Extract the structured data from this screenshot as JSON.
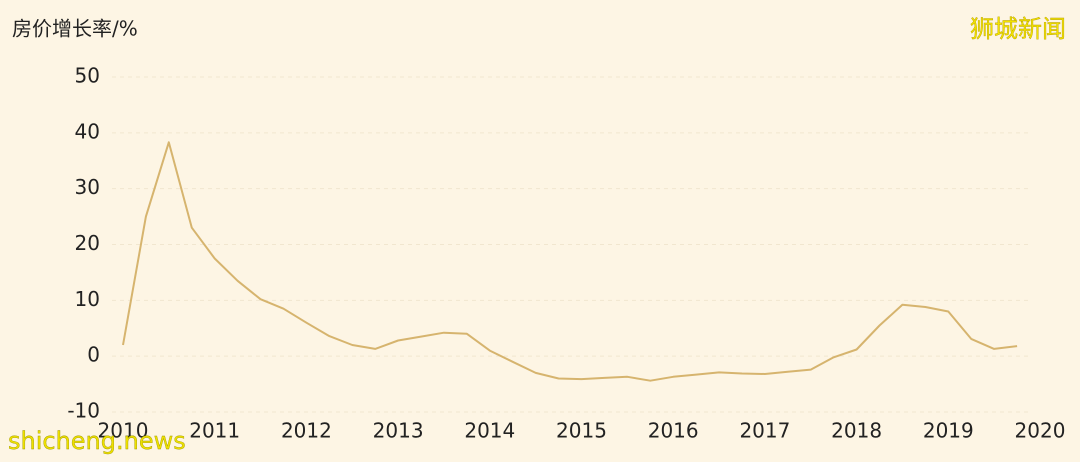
{
  "chart_data": {
    "type": "line",
    "y_label": "房价增长率/%",
    "annotations": [
      "狮城新闻",
      "shicheng.news"
    ],
    "x": [
      2010,
      2010.25,
      2010.5,
      2010.75,
      2011,
      2011.25,
      2011.5,
      2011.75,
      2012,
      2012.25,
      2012.5,
      2012.75,
      2013,
      2013.25,
      2013.5,
      2013.75,
      2014,
      2014.25,
      2014.5,
      2014.75,
      2015,
      2015.25,
      2015.5,
      2015.75,
      2016,
      2016.25,
      2016.5,
      2016.75,
      2017,
      2017.25,
      2017.5,
      2017.75,
      2018,
      2018.25,
      2018.5,
      2018.75,
      2019,
      2019.25,
      2019.5,
      2019.75
    ],
    "values": [
      2,
      25,
      38.3,
      23,
      17.5,
      13.5,
      10.2,
      8.5,
      6,
      3.6,
      2,
      1.3,
      2.8,
      3.5,
      4.2,
      4,
      1,
      -1,
      -3,
      -4,
      -4.1,
      -3.9,
      -3.7,
      -4.4,
      -3.7,
      -3.3,
      -2.9,
      -3.1,
      -3.2,
      -2.8,
      -2.4,
      -0.2,
      1.2,
      5.5,
      9.2,
      8.8,
      8,
      3.1,
      1.3,
      1.8
    ],
    "color": "#d6b46e",
    "xlim": [
      2010,
      2020
    ],
    "xticks": [
      2010,
      2011,
      2012,
      2013,
      2014,
      2015,
      2016,
      2017,
      2018,
      2019,
      2020
    ],
    "ylim": [
      -10,
      50
    ],
    "yticks": [
      -10,
      0,
      10,
      20,
      30,
      40,
      50
    ],
    "grid": true
  }
}
